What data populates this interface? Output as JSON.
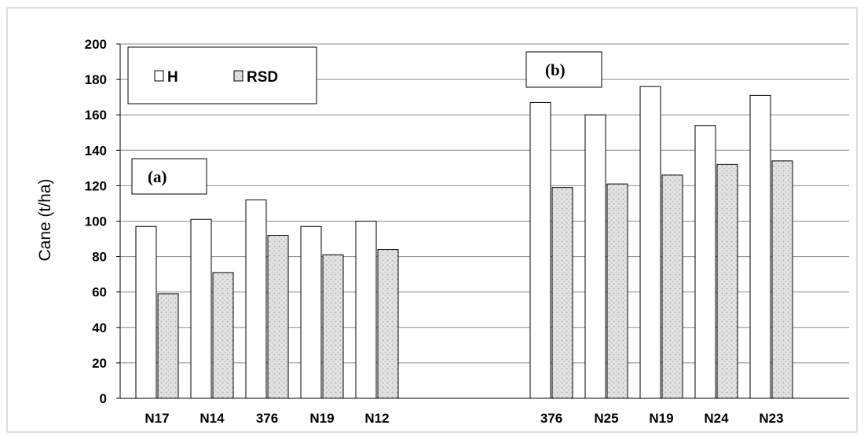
{
  "chart_data": {
    "type": "bar",
    "ylabel": "Cane (t/ha)",
    "xlabel": "",
    "ylim": [
      0,
      200
    ],
    "yticks": [
      "0",
      "20",
      "40",
      "60",
      "80",
      "100",
      "120",
      "140",
      "160",
      "180",
      "200"
    ],
    "grid": true,
    "legend": {
      "placement": "top-left",
      "entries": [
        {
          "label": "H",
          "color": "#ffffff"
        },
        {
          "label": "RSD",
          "color": "#d9d9d9"
        }
      ]
    },
    "groups": [
      {
        "label": "(a)",
        "categories": [
          "N17",
          "N14",
          "376",
          "N19",
          "N12"
        ],
        "series": [
          {
            "name": "H",
            "values": [
              97,
              101,
              112,
              97,
              100
            ]
          },
          {
            "name": "RSD",
            "values": [
              59,
              71,
              92,
              81,
              84
            ]
          }
        ]
      },
      {
        "label": "(b)",
        "categories": [
          "376",
          "N25",
          "N19",
          "N24",
          "N23"
        ],
        "series": [
          {
            "name": "H",
            "values": [
              167,
              160,
              176,
              154,
              171
            ]
          },
          {
            "name": "RSD",
            "values": [
              119,
              121,
              126,
              132,
              134
            ]
          }
        ]
      }
    ]
  }
}
